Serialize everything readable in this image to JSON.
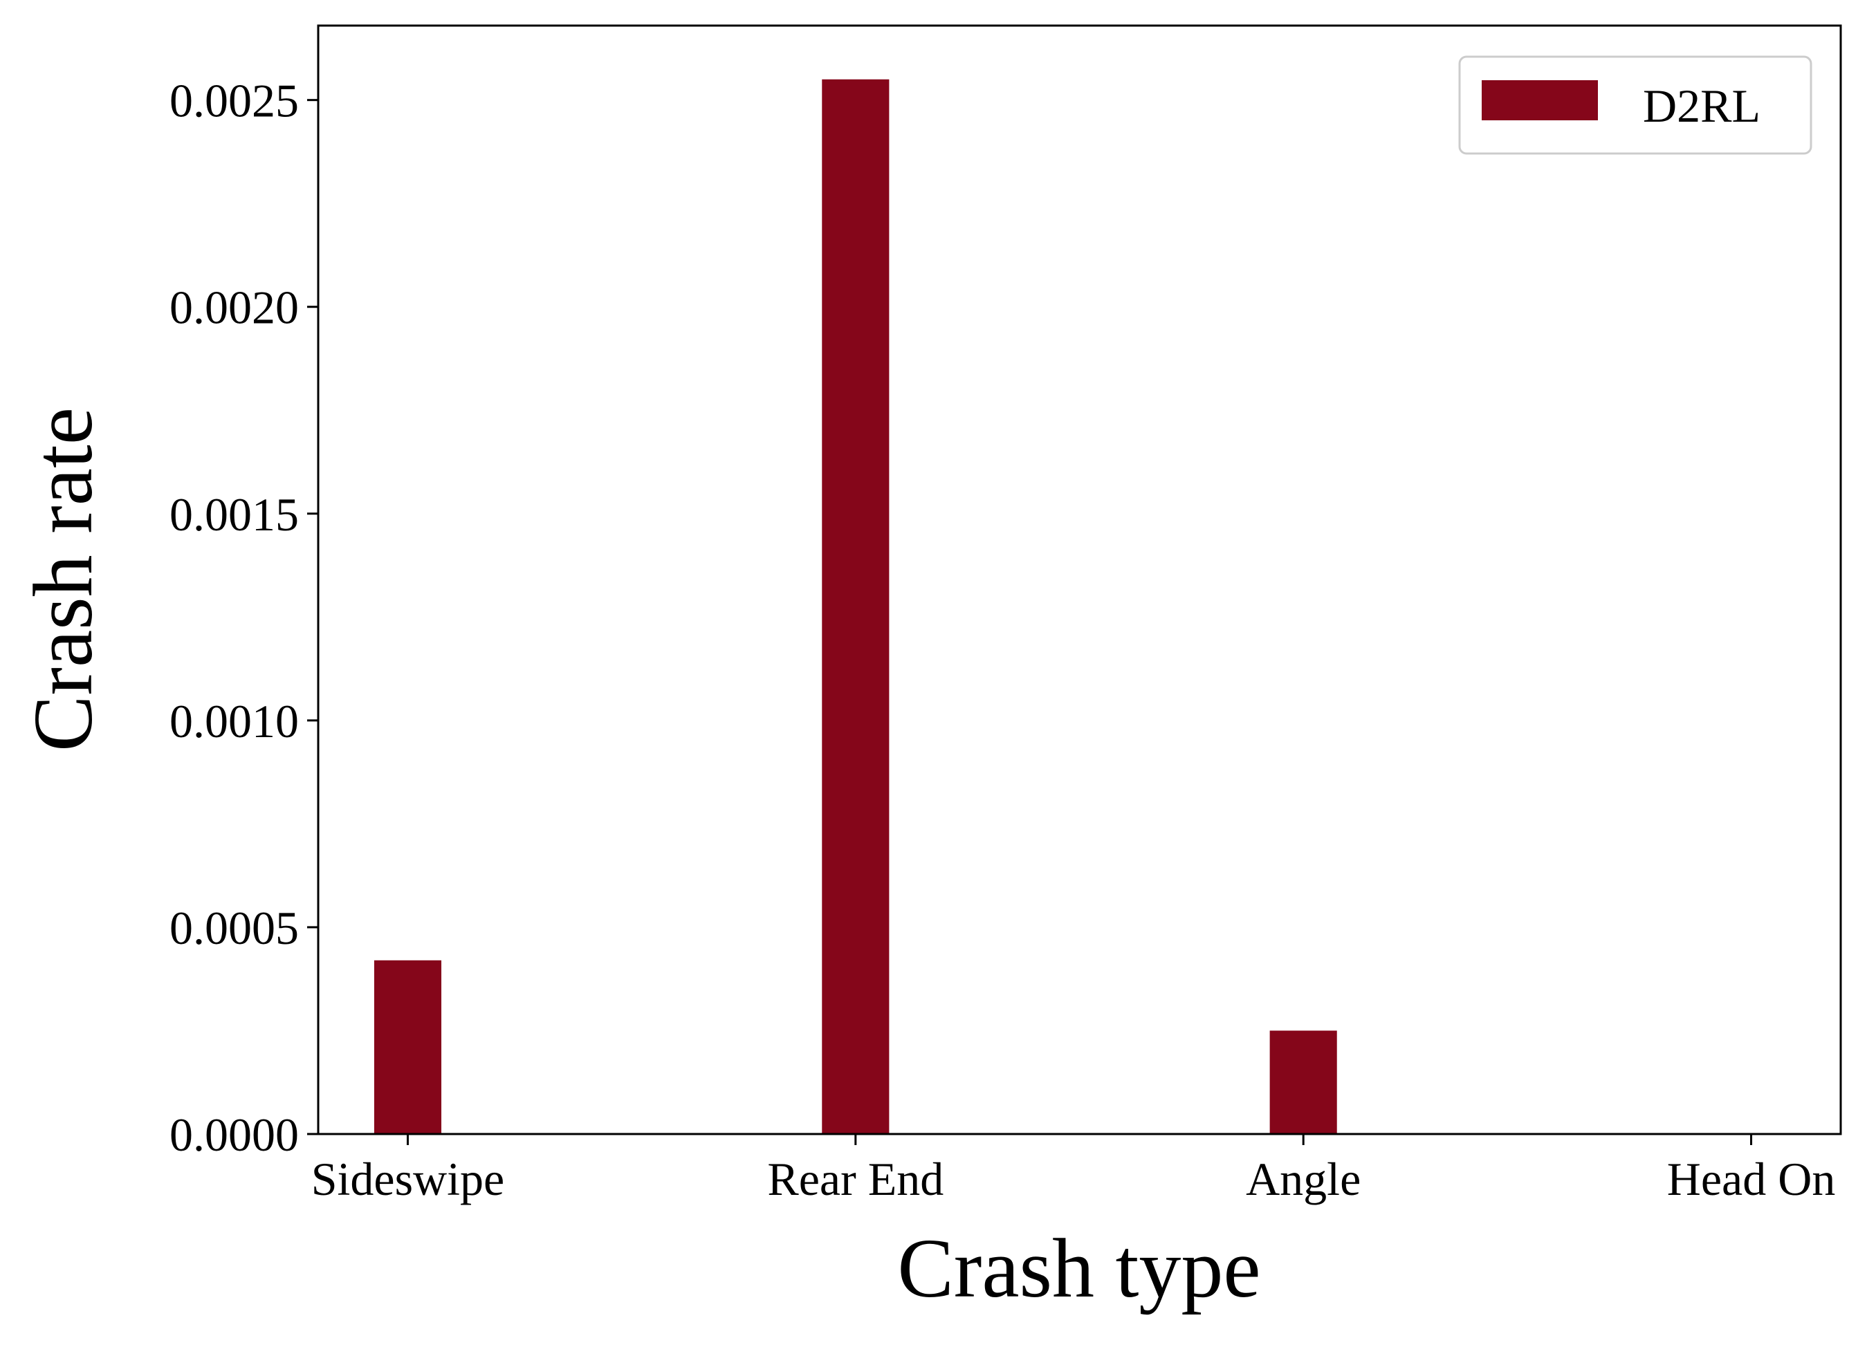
{
  "chart_data": {
    "type": "bar",
    "title": "",
    "xlabel": "Crash type",
    "ylabel": "Crash rate",
    "categories": [
      "Sideswipe",
      "Rear End",
      "Angle",
      "Head On"
    ],
    "series": [
      {
        "name": "D2RL",
        "color": "#85061a",
        "values": [
          0.00042,
          0.00255,
          0.00025,
          0.0
        ]
      }
    ],
    "ylim": [
      0,
      0.00268
    ],
    "yticks": [
      0.0,
      0.0005,
      0.001,
      0.0015,
      0.002,
      0.0025
    ],
    "ytick_labels": [
      "0.0000",
      "0.0005",
      "0.0010",
      "0.0015",
      "0.0020",
      "0.0025"
    ],
    "grid": false,
    "legend_position": "top-right"
  }
}
